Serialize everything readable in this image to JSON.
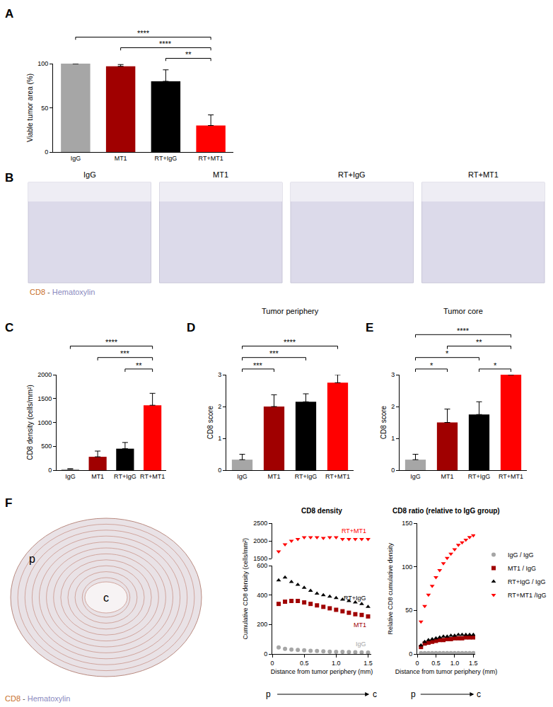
{
  "chart_data": [
    {
      "panel": "A",
      "type": "bar",
      "categories": [
        "IgG",
        "MT1",
        "RT+IgG",
        "RT+MT1"
      ],
      "values": [
        100,
        97,
        80,
        30
      ],
      "errors": [
        0,
        2,
        13,
        12
      ],
      "colors": [
        "#a6a6a6",
        "#a00000",
        "#000000",
        "#ff0000"
      ],
      "ylabel": "Viable tumor area (%)",
      "ylim": [
        0,
        100
      ],
      "yticks": [
        0,
        50,
        100
      ],
      "grid": false,
      "significance": [
        {
          "from": "RT+IgG",
          "to": "RT+MT1",
          "label": "**"
        },
        {
          "from": "MT1",
          "to": "RT+MT1",
          "label": "****"
        },
        {
          "from": "IgG",
          "to": "RT+MT1",
          "label": "****"
        }
      ]
    },
    {
      "panel": "C",
      "type": "bar",
      "categories": [
        "IgG",
        "MT1",
        "RT+IgG",
        "RT+MT1"
      ],
      "values": [
        20,
        280,
        450,
        1360
      ],
      "errors": [
        10,
        120,
        130,
        250
      ],
      "colors": [
        "#a6a6a6",
        "#a00000",
        "#000000",
        "#ff0000"
      ],
      "ylabel": "CD8 density (cells/mm²)",
      "ylim": [
        0,
        2000
      ],
      "yticks": [
        0,
        500,
        1000,
        1500,
        2000
      ],
      "grid": false,
      "significance": [
        {
          "from": "RT+IgG",
          "to": "RT+MT1",
          "label": "**"
        },
        {
          "from": "MT1",
          "to": "RT+MT1",
          "label": "***"
        },
        {
          "from": "IgG",
          "to": "RT+MT1",
          "label": "****"
        }
      ]
    },
    {
      "panel": "D",
      "type": "bar",
      "title": "Tumor periphery",
      "categories": [
        "IgG",
        "MT1",
        "RT+IgG",
        "RT+MT1"
      ],
      "values": [
        0.33,
        2.0,
        2.15,
        2.75
      ],
      "errors": [
        0.17,
        0.37,
        0.25,
        0.25
      ],
      "colors": [
        "#a6a6a6",
        "#a00000",
        "#000000",
        "#ff0000"
      ],
      "ylabel": "CD8 score",
      "ylim": [
        0,
        3
      ],
      "yticks": [
        0,
        1,
        2,
        3
      ],
      "grid": false,
      "significance": [
        {
          "from": "IgG",
          "to": "MT1",
          "label": "***"
        },
        {
          "from": "IgG",
          "to": "RT+IgG",
          "label": "***"
        },
        {
          "from": "IgG",
          "to": "RT+MT1",
          "label": "****"
        }
      ]
    },
    {
      "panel": "E",
      "type": "bar",
      "title": "Tumor core",
      "categories": [
        "IgG",
        "MT1",
        "RT+IgG",
        "RT+MT1"
      ],
      "values": [
        0.33,
        1.5,
        1.75,
        3.0
      ],
      "errors": [
        0.17,
        0.42,
        0.4,
        0
      ],
      "colors": [
        "#a6a6a6",
        "#a00000",
        "#000000",
        "#ff0000"
      ],
      "ylabel": "CD8 score",
      "ylim": [
        0,
        3
      ],
      "yticks": [
        0,
        1,
        2,
        3
      ],
      "grid": false,
      "significance": [
        {
          "from": "IgG",
          "to": "MT1",
          "label": "*"
        },
        {
          "from": "RT+IgG",
          "to": "RT+MT1",
          "label": "*"
        },
        {
          "from": "IgG",
          "to": "RT+IgG",
          "label": "*"
        },
        {
          "from": "MT1",
          "to": "RT+MT1",
          "label": "**"
        },
        {
          "from": "IgG",
          "to": "RT+MT1",
          "label": "****"
        }
      ]
    },
    {
      "type": "scatter",
      "title": "CD8 density",
      "xlabel": "Distance from tumor periphery (mm)",
      "ylabel": "Cumulative CD8 density (cells/mm²)",
      "x": [
        0.1,
        0.2,
        0.3,
        0.4,
        0.5,
        0.6,
        0.7,
        0.8,
        0.9,
        1.0,
        1.1,
        1.2,
        1.3,
        1.4,
        1.5
      ],
      "xlim": [
        0,
        1.55
      ],
      "xticks": [
        0,
        0.5,
        {
          "value": 1,
          "label": "1.0"
        },
        1.5
      ],
      "ylim": [
        0,
        600
      ],
      "yticks": [
        0,
        200,
        400,
        600
      ],
      "y2lim": [
        1500,
        2500
      ],
      "y2ticks": [
        1500,
        2000,
        2500
      ],
      "grid": false,
      "x_from": "p",
      "x_to": "c",
      "series": [
        {
          "name": "RT+MT1",
          "color": "#ff0000",
          "marker": "triangle-down",
          "axis": "y2",
          "values": [
            1700,
            1900,
            2000,
            2050,
            2100,
            2100,
            2100,
            2080,
            2100,
            2100,
            2050,
            2050,
            2050,
            2050,
            2050
          ]
        },
        {
          "name": "RT+IgG",
          "color": "#000000",
          "marker": "triangle-up",
          "values": [
            500,
            520,
            490,
            470,
            450,
            430,
            410,
            400,
            390,
            380,
            370,
            360,
            350,
            340,
            320
          ]
        },
        {
          "name": "MT1",
          "color": "#a00000",
          "marker": "square",
          "values": [
            340,
            355,
            360,
            360,
            350,
            340,
            330,
            320,
            310,
            300,
            290,
            280,
            270,
            265,
            255
          ]
        },
        {
          "name": "IgG",
          "color": "#a6a6a6",
          "marker": "circle",
          "values": [
            45,
            35,
            30,
            28,
            25,
            22,
            20,
            18,
            16,
            15,
            14,
            13,
            12,
            11,
            10
          ]
        }
      ]
    },
    {
      "type": "scatter",
      "title": "CD8 ratio (relative to IgG group)",
      "xlabel": "Distance from tumor periphery (mm)",
      "ylabel": "Relative CD8 cumulative density",
      "x": [
        0.1,
        0.2,
        0.3,
        0.4,
        0.5,
        0.6,
        0.7,
        0.8,
        0.9,
        1.0,
        1.1,
        1.2,
        1.3,
        1.4,
        1.5
      ],
      "xlim": [
        0,
        1.55
      ],
      "xticks": [
        0,
        0.5,
        {
          "value": 1,
          "label": "1.0"
        },
        1.5
      ],
      "ylim": [
        0,
        150
      ],
      "yticks": [
        0,
        50,
        100,
        150
      ],
      "grid": false,
      "legend": "right",
      "x_from": "p",
      "x_to": "c",
      "series": [
        {
          "name": "IgG / IgG",
          "color": "#a6a6a6",
          "marker": "circle",
          "values": [
            1,
            1,
            1,
            1,
            1,
            1,
            1,
            1,
            1,
            1,
            1,
            1,
            1,
            1,
            1
          ]
        },
        {
          "name": "MT1 / IgG",
          "color": "#a00000",
          "marker": "square",
          "values": [
            8,
            12,
            13,
            14,
            15,
            16,
            16,
            17,
            17,
            18,
            18,
            18,
            19,
            19,
            19
          ]
        },
        {
          "name": "RT+IgG / IgG",
          "color": "#000000",
          "marker": "triangle-up",
          "values": [
            10,
            14,
            16,
            17,
            18,
            19,
            20,
            20,
            21,
            21,
            22,
            22,
            22,
            22,
            22
          ]
        },
        {
          "name": "RT+MT1 /IgG",
          "color": "#ff0000",
          "marker": "triangle-down",
          "values": [
            37,
            55,
            68,
            78,
            88,
            96,
            104,
            110,
            115,
            120,
            125,
            128,
            131,
            134,
            136
          ]
        }
      ]
    }
  ],
  "image_panel_b": {
    "panel": "B",
    "titles": [
      "IgG",
      "MT1",
      "RT+IgG",
      "RT+MT1"
    ],
    "caption": [
      {
        "text": "CD8",
        "color": "#c8702a"
      },
      {
        "text": " - ",
        "color": "#555555"
      },
      {
        "text": "Hematoxylin",
        "color": "#8a8ac0"
      }
    ]
  },
  "image_panel_f": {
    "panel": "F",
    "labels": [
      "p",
      "c"
    ],
    "caption": [
      {
        "text": "CD8",
        "color": "#c8702a"
      },
      {
        "text": " - ",
        "color": "#555555"
      },
      {
        "text": "Hematoxylin",
        "color": "#8a8ac0"
      }
    ]
  }
}
